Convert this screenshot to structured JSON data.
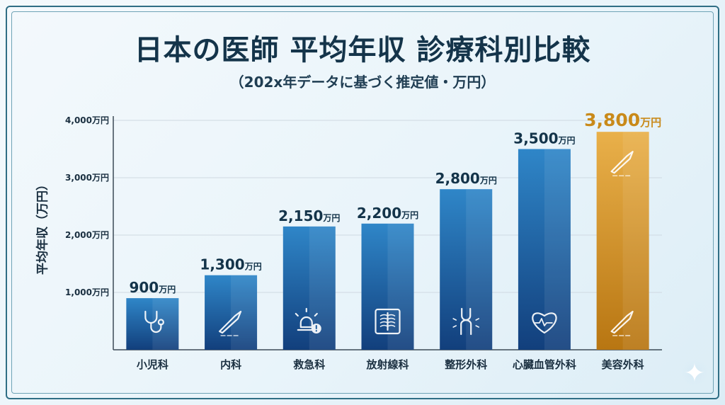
{
  "title": "日本の医師 平均年収 診療科別比較",
  "subtitle": "（202x年データに基づく推定値・万円）",
  "chart_data": {
    "type": "bar",
    "ylabel": "平均年収（万円）",
    "ylim": [
      0,
      4000
    ],
    "yticks": [
      1000,
      2000,
      3000,
      4000
    ],
    "ytick_labels": [
      "1,000万円",
      "2,000万円",
      "3,000万円",
      "4,000万円"
    ],
    "grid": true,
    "categories": [
      "小児科",
      "内科",
      "救急科",
      "放射線科",
      "整形外科",
      "心臓血管外科",
      "美容外科"
    ],
    "values": [
      900,
      1300,
      2150,
      2200,
      2800,
      3500,
      3800
    ],
    "value_labels": [
      {
        "num": "900",
        "unit": "万円"
      },
      {
        "num": "1,300",
        "unit": "万円"
      },
      {
        "num": "2,150",
        "unit": "万円"
      },
      {
        "num": "2,200",
        "unit": "万円"
      },
      {
        "num": "2,800",
        "unit": "万円"
      },
      {
        "num": "3,500",
        "unit": "万円"
      },
      {
        "num": "3,800",
        "unit": "万円"
      }
    ],
    "icons": [
      "stethoscope-icon",
      "scalpel-icon",
      "alarm-icon",
      "xray-icon",
      "knee-joint-icon",
      "heart-pulse-icon",
      "scalpel-icon"
    ],
    "highlight_index": 6,
    "colors": {
      "bar_top": "#2f86c8",
      "bar_bottom": "#123f7c",
      "highlight_top": "#e9b04a",
      "highlight_bottom": "#b87612",
      "value_text": "#14344a",
      "highlight_text": "#c98a1a",
      "axis": "#3c4a56",
      "grid": "#cfd9e2"
    }
  }
}
